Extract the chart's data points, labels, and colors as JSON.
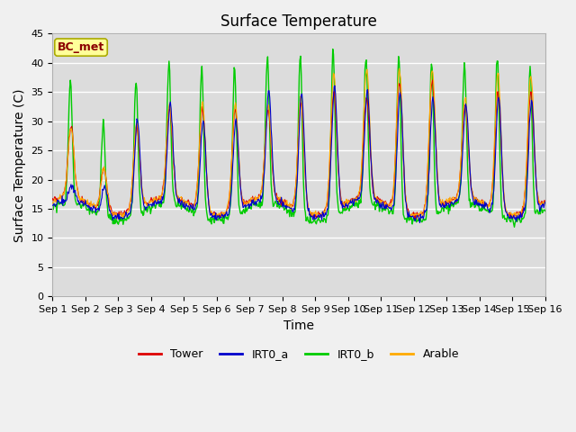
{
  "title": "Surface Temperature",
  "ylabel": "Surface Temperature (C)",
  "xlabel": "Time",
  "annotation": "BC_met",
  "ylim": [
    0,
    45
  ],
  "yticks": [
    0,
    5,
    10,
    15,
    20,
    25,
    30,
    35,
    40,
    45
  ],
  "xtick_labels": [
    "Sep 1",
    "Sep 2",
    "Sep 3",
    "Sep 4",
    "Sep 5",
    "Sep 6",
    "Sep 7",
    "Sep 8",
    "Sep 9",
    "Sep 10",
    "Sep 11",
    "Sep 12",
    "Sep 13",
    "Sep 14",
    "Sep 15",
    "Sep 16"
  ],
  "series": {
    "Tower": {
      "color": "#dd0000",
      "lw": 0.8
    },
    "IRT0_a": {
      "color": "#0000cc",
      "lw": 0.8
    },
    "IRT0_b": {
      "color": "#00cc00",
      "lw": 1.0
    },
    "Arable": {
      "color": "#ffaa00",
      "lw": 0.8
    }
  },
  "fig_bg": "#f0f0f0",
  "plot_bg": "#dcdcdc",
  "grid_color": "#ffffff",
  "title_fontsize": 12,
  "axis_label_fontsize": 10,
  "tick_fontsize": 8,
  "legend_fontsize": 9
}
